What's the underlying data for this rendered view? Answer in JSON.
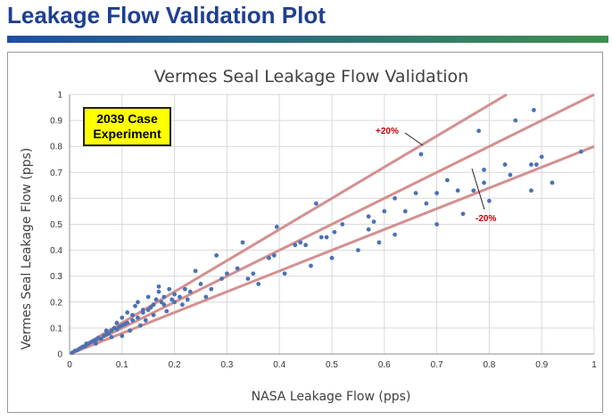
{
  "slide": {
    "title": "Leakage Flow Validation Plot"
  },
  "colors": {
    "title": "#1f3f8f",
    "points": "#4a72b4",
    "lines": "#d49090",
    "annotation": "#c00000",
    "grid": "#d9d9d9"
  },
  "chart_data": {
    "type": "scatter",
    "title": "Vermes Seal Leakage Flow Validation",
    "xlabel": "NASA Leakage Flow (pps)",
    "ylabel": "Vermes Seal Leakage Flow (pps)",
    "xlim": [
      0,
      1
    ],
    "ylim": [
      0,
      1
    ],
    "xticks": [
      "0",
      "0.1",
      "0.2",
      "0.3",
      "0.4",
      "0.5",
      "0.6",
      "0.7",
      "0.8",
      "0.9",
      "1"
    ],
    "yticks": [
      "0",
      "0.1",
      "0.2",
      "0.3",
      "0.4",
      "0.5",
      "0.6",
      "0.7",
      "0.8",
      "0.9",
      "1"
    ],
    "grid": true,
    "legend": {
      "line1": "2039 Case",
      "line2": "Experiment"
    },
    "reference_lines": [
      {
        "label": "+20%",
        "slope": 1.2
      },
      {
        "label": "",
        "slope": 1.0
      },
      {
        "label": "-20%",
        "slope": 0.8
      }
    ],
    "series": [
      {
        "name": "2039 Case Experiment",
        "points": [
          [
            0.005,
            0.005
          ],
          [
            0.01,
            0.012
          ],
          [
            0.015,
            0.015
          ],
          [
            0.02,
            0.022
          ],
          [
            0.025,
            0.028
          ],
          [
            0.03,
            0.03
          ],
          [
            0.032,
            0.04
          ],
          [
            0.035,
            0.038
          ],
          [
            0.04,
            0.045
          ],
          [
            0.045,
            0.05
          ],
          [
            0.05,
            0.055
          ],
          [
            0.05,
            0.04
          ],
          [
            0.055,
            0.062
          ],
          [
            0.06,
            0.058
          ],
          [
            0.065,
            0.07
          ],
          [
            0.07,
            0.075
          ],
          [
            0.07,
            0.09
          ],
          [
            0.075,
            0.08
          ],
          [
            0.08,
            0.09
          ],
          [
            0.08,
            0.065
          ],
          [
            0.085,
            0.1
          ],
          [
            0.09,
            0.095
          ],
          [
            0.09,
            0.12
          ],
          [
            0.095,
            0.105
          ],
          [
            0.1,
            0.11
          ],
          [
            0.1,
            0.14
          ],
          [
            0.1,
            0.07
          ],
          [
            0.105,
            0.115
          ],
          [
            0.11,
            0.12
          ],
          [
            0.11,
            0.16
          ],
          [
            0.115,
            0.09
          ],
          [
            0.12,
            0.13
          ],
          [
            0.12,
            0.15
          ],
          [
            0.125,
            0.185
          ],
          [
            0.13,
            0.14
          ],
          [
            0.13,
            0.2
          ],
          [
            0.135,
            0.11
          ],
          [
            0.14,
            0.16
          ],
          [
            0.14,
            0.17
          ],
          [
            0.145,
            0.13
          ],
          [
            0.15,
            0.17
          ],
          [
            0.15,
            0.22
          ],
          [
            0.155,
            0.18
          ],
          [
            0.16,
            0.19
          ],
          [
            0.16,
            0.15
          ],
          [
            0.165,
            0.21
          ],
          [
            0.17,
            0.24
          ],
          [
            0.17,
            0.26
          ],
          [
            0.175,
            0.2
          ],
          [
            0.18,
            0.19
          ],
          [
            0.18,
            0.22
          ],
          [
            0.185,
            0.165
          ],
          [
            0.19,
            0.25
          ],
          [
            0.195,
            0.21
          ],
          [
            0.2,
            0.2
          ],
          [
            0.2,
            0.23
          ],
          [
            0.21,
            0.22
          ],
          [
            0.215,
            0.19
          ],
          [
            0.22,
            0.25
          ],
          [
            0.225,
            0.21
          ],
          [
            0.23,
            0.24
          ],
          [
            0.24,
            0.32
          ],
          [
            0.25,
            0.27
          ],
          [
            0.26,
            0.22
          ],
          [
            0.27,
            0.25
          ],
          [
            0.28,
            0.38
          ],
          [
            0.29,
            0.29
          ],
          [
            0.3,
            0.31
          ],
          [
            0.32,
            0.33
          ],
          [
            0.33,
            0.43
          ],
          [
            0.34,
            0.29
          ],
          [
            0.35,
            0.31
          ],
          [
            0.36,
            0.27
          ],
          [
            0.38,
            0.37
          ],
          [
            0.39,
            0.38
          ],
          [
            0.395,
            0.49
          ],
          [
            0.41,
            0.31
          ],
          [
            0.43,
            0.42
          ],
          [
            0.44,
            0.43
          ],
          [
            0.45,
            0.42
          ],
          [
            0.46,
            0.34
          ],
          [
            0.47,
            0.58
          ],
          [
            0.48,
            0.45
          ],
          [
            0.49,
            0.45
          ],
          [
            0.5,
            0.37
          ],
          [
            0.505,
            0.47
          ],
          [
            0.52,
            0.5
          ],
          [
            0.55,
            0.4
          ],
          [
            0.57,
            0.53
          ],
          [
            0.57,
            0.48
          ],
          [
            0.58,
            0.51
          ],
          [
            0.59,
            0.43
          ],
          [
            0.6,
            0.55
          ],
          [
            0.62,
            0.46
          ],
          [
            0.62,
            0.6
          ],
          [
            0.64,
            0.55
          ],
          [
            0.66,
            0.62
          ],
          [
            0.67,
            0.77
          ],
          [
            0.68,
            0.58
          ],
          [
            0.7,
            0.62
          ],
          [
            0.7,
            0.5
          ],
          [
            0.72,
            0.67
          ],
          [
            0.74,
            0.63
          ],
          [
            0.75,
            0.54
          ],
          [
            0.77,
            0.63
          ],
          [
            0.78,
            0.86
          ],
          [
            0.79,
            0.71
          ],
          [
            0.79,
            0.66
          ],
          [
            0.8,
            0.59
          ],
          [
            0.83,
            0.73
          ],
          [
            0.84,
            0.69
          ],
          [
            0.85,
            0.9
          ],
          [
            0.88,
            0.73
          ],
          [
            0.885,
            0.94
          ],
          [
            0.89,
            0.73
          ],
          [
            0.9,
            0.76
          ],
          [
            0.92,
            0.66
          ],
          [
            0.975,
            0.78
          ],
          [
            0.88,
            0.63
          ]
        ]
      }
    ]
  }
}
